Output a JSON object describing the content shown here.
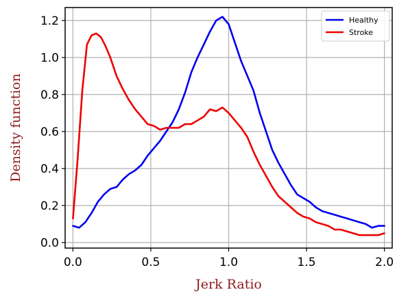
{
  "chart_data": {
    "type": "line",
    "title": "",
    "xlabel": "Jerk Ratio",
    "ylabel": "Density function",
    "xlim": [
      -0.05,
      2.05
    ],
    "ylim": [
      -0.03,
      1.27
    ],
    "xticks": [
      0.0,
      0.5,
      1.0,
      1.5,
      2.0
    ],
    "xtick_labels": [
      "0.0",
      "0.5",
      "1.0",
      "1.5",
      "2.0"
    ],
    "yticks": [
      0.0,
      0.2,
      0.4,
      0.6,
      0.8,
      1.0,
      1.2
    ],
    "ytick_labels": [
      "0.0",
      "0.2",
      "0.4",
      "0.6",
      "0.8",
      "1.0",
      "1.2"
    ],
    "grid": true,
    "legend_position": "top-right",
    "series": [
      {
        "name": "Healthy",
        "color": "#0000ee",
        "x": [
          0.0,
          0.04,
          0.08,
          0.12,
          0.16,
          0.2,
          0.24,
          0.28,
          0.32,
          0.36,
          0.4,
          0.44,
          0.48,
          0.52,
          0.56,
          0.6,
          0.64,
          0.68,
          0.72,
          0.76,
          0.8,
          0.84,
          0.88,
          0.92,
          0.96,
          1.0,
          1.04,
          1.08,
          1.12,
          1.16,
          1.2,
          1.24,
          1.28,
          1.32,
          1.36,
          1.4,
          1.44,
          1.48,
          1.52,
          1.56,
          1.6,
          1.64,
          1.68,
          1.72,
          1.76,
          1.8,
          1.84,
          1.88,
          1.92,
          1.96,
          2.0
        ],
        "y": [
          0.09,
          0.08,
          0.11,
          0.16,
          0.22,
          0.26,
          0.29,
          0.3,
          0.34,
          0.37,
          0.39,
          0.42,
          0.47,
          0.51,
          0.55,
          0.6,
          0.65,
          0.72,
          0.81,
          0.92,
          1.0,
          1.07,
          1.14,
          1.2,
          1.22,
          1.18,
          1.08,
          0.98,
          0.9,
          0.82,
          0.7,
          0.6,
          0.5,
          0.43,
          0.37,
          0.31,
          0.26,
          0.24,
          0.22,
          0.19,
          0.17,
          0.16,
          0.15,
          0.14,
          0.13,
          0.12,
          0.11,
          0.1,
          0.08,
          0.09,
          0.09
        ]
      },
      {
        "name": "Stroke",
        "color": "#ee0000",
        "x": [
          0.0,
          0.03,
          0.06,
          0.09,
          0.12,
          0.15,
          0.18,
          0.21,
          0.24,
          0.28,
          0.32,
          0.36,
          0.4,
          0.44,
          0.48,
          0.52,
          0.56,
          0.6,
          0.64,
          0.68,
          0.72,
          0.76,
          0.8,
          0.84,
          0.88,
          0.92,
          0.96,
          1.0,
          1.04,
          1.08,
          1.12,
          1.16,
          1.2,
          1.24,
          1.28,
          1.32,
          1.36,
          1.4,
          1.44,
          1.48,
          1.52,
          1.56,
          1.6,
          1.64,
          1.68,
          1.72,
          1.76,
          1.8,
          1.84,
          1.88,
          1.92,
          1.96,
          2.0
        ],
        "y": [
          0.13,
          0.45,
          0.82,
          1.07,
          1.12,
          1.13,
          1.11,
          1.06,
          1.0,
          0.9,
          0.83,
          0.77,
          0.72,
          0.68,
          0.64,
          0.63,
          0.61,
          0.62,
          0.62,
          0.62,
          0.64,
          0.64,
          0.66,
          0.68,
          0.72,
          0.71,
          0.73,
          0.7,
          0.66,
          0.62,
          0.57,
          0.49,
          0.42,
          0.36,
          0.3,
          0.25,
          0.22,
          0.19,
          0.16,
          0.14,
          0.13,
          0.11,
          0.1,
          0.09,
          0.07,
          0.07,
          0.06,
          0.05,
          0.04,
          0.04,
          0.04,
          0.04,
          0.05
        ]
      }
    ]
  }
}
